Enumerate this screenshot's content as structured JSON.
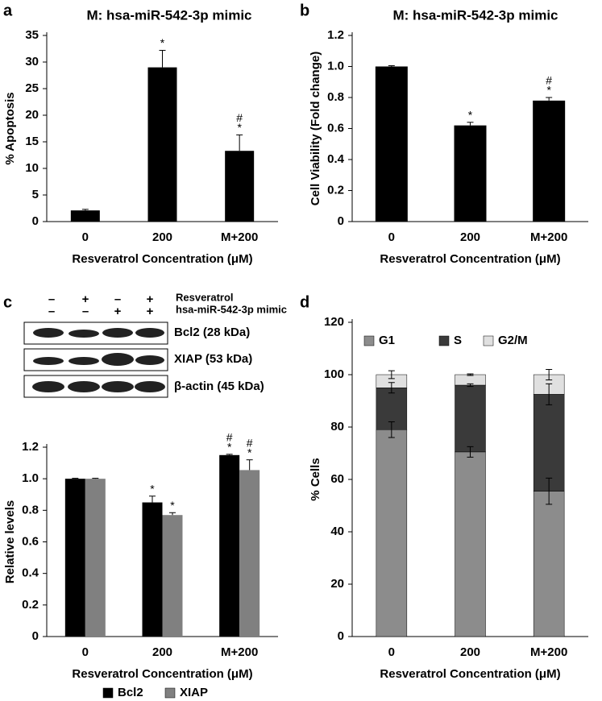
{
  "panel_labels": [
    "a",
    "b",
    "c",
    "d"
  ],
  "blot": {
    "resveratrol_label": "Resveratrol",
    "mimic_label": "hsa-miR-542-3p mimic",
    "resveratrol": [
      "–",
      "+",
      "–",
      "+"
    ],
    "mimic": [
      "–",
      "–",
      "+",
      "+"
    ],
    "bands": [
      "Bcl2 (28 kDa)",
      "XIAP (53 kDa)",
      "β-actin (45 kDa)"
    ]
  },
  "chart_data": [
    {
      "type": "bar",
      "title": "M: hsa-miR-542-3p mimic",
      "xlabel": "Resveratrol Concentration (μM)",
      "ylabel": "% Apoptosis",
      "categories": [
        "0",
        "200",
        "M+200"
      ],
      "values": [
        2.1,
        29,
        13.3
      ],
      "errors": [
        0.2,
        3.2,
        3.0
      ],
      "color": "#000000",
      "annotations": [
        [],
        [
          "*"
        ],
        [
          "#",
          "*"
        ]
      ],
      "ylim": [
        0,
        35
      ],
      "yticks": [
        0,
        5,
        10,
        15,
        20,
        25,
        30,
        35
      ]
    },
    {
      "type": "bar",
      "title": "M: hsa-miR-542-3p mimic",
      "xlabel": "Resveratrol Concentration (μM)",
      "ylabel": "Cell Viability (Fold change)",
      "categories": [
        "0",
        "200",
        "M+200"
      ],
      "values": [
        1.0,
        0.62,
        0.78
      ],
      "errors": [
        0.005,
        0.02,
        0.02
      ],
      "color": "#000000",
      "annotations": [
        [],
        [
          "*"
        ],
        [
          "#",
          "*"
        ]
      ],
      "ylim": [
        0,
        1.2
      ],
      "yticks": [
        0,
        0.2,
        0.4,
        0.6,
        0.8,
        {
          "value": 1,
          "label": "1.0"
        },
        1.2
      ]
    },
    {
      "type": "bar",
      "xlabel": "Resveratrol Concentration (μM)",
      "ylabel": "Relative levels",
      "categories": [
        "0",
        "200",
        "M+200"
      ],
      "legend": "bottom",
      "series": [
        {
          "name": "Bcl2",
          "color": "#000000",
          "values": [
            1.0,
            0.85,
            1.15
          ],
          "errors": [
            0.003,
            0.04,
            0.005
          ],
          "annotations": [
            [],
            [
              "*"
            ],
            [
              "#",
              "*"
            ]
          ]
        },
        {
          "name": "XIAP",
          "color": "#808080",
          "values": [
            1.0,
            0.77,
            1.055
          ],
          "errors": [
            0.003,
            0.015,
            0.065
          ],
          "annotations": [
            [],
            [
              "*"
            ],
            [
              "#",
              "*"
            ]
          ]
        }
      ],
      "ylim": [
        0,
        1.2
      ],
      "yticks": [
        0,
        0.2,
        0.4,
        0.6,
        0.8,
        {
          "value": 1,
          "label": "1.0"
        },
        1.2
      ]
    },
    {
      "type": "stacked_bar",
      "xlabel": "Resveratrol Concentration (μM)",
      "ylabel": "% Cells",
      "categories": [
        "0",
        "200",
        "M+200"
      ],
      "legend": "top",
      "series": [
        {
          "name": "G1",
          "color": "#8c8c8c",
          "values": [
            79,
            70.5,
            55.5
          ],
          "errors": [
            3,
            2,
            5
          ]
        },
        {
          "name": "S",
          "color": "#3a3a3a",
          "values": [
            16,
            25.5,
            37
          ],
          "errors": [
            2,
            0.5,
            4
          ]
        },
        {
          "name": "G2/M",
          "color": "#e0e0e0",
          "values": [
            5,
            4,
            7.5
          ],
          "errors": [
            1.5,
            0.3,
            2
          ]
        }
      ],
      "ylim": [
        0,
        120
      ],
      "yticks": [
        0,
        20,
        40,
        60,
        80,
        100,
        120
      ]
    }
  ]
}
